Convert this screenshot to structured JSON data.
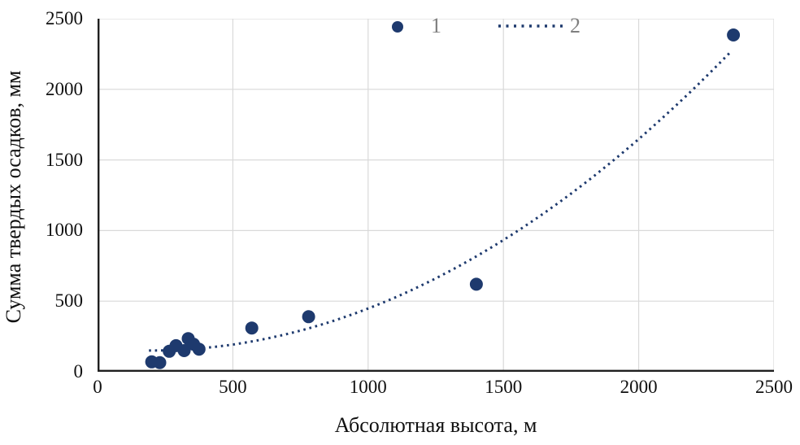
{
  "colors": {
    "series_navy": "#1e3a6e",
    "grid": "#d9d9d9",
    "axis": "#1f1f1f",
    "tick_text": "#111111",
    "legend_text": "#7f7f7f",
    "background": "#ffffff"
  },
  "chart_data": {
    "type": "scatter",
    "title": "",
    "xlabel": "Абсолютная высота, м",
    "ylabel": "Сумма твердых осадков, мм",
    "xlim": [
      0,
      2500
    ],
    "ylim": [
      0,
      2500
    ],
    "x_ticks": [
      0,
      500,
      1000,
      1500,
      2000,
      2500
    ],
    "y_ticks": [
      0,
      500,
      1000,
      1500,
      2000,
      2500
    ],
    "grid": true,
    "legend_position": "top-center-inside",
    "series": [
      {
        "name": "1",
        "type": "scatter",
        "marker": "circle",
        "color": "#1e3a6e",
        "points": [
          [
            200,
            70
          ],
          [
            230,
            65
          ],
          [
            265,
            145
          ],
          [
            290,
            185
          ],
          [
            320,
            150
          ],
          [
            335,
            235
          ],
          [
            355,
            195
          ],
          [
            375,
            160
          ],
          [
            570,
            310
          ],
          [
            780,
            390
          ],
          [
            1400,
            620
          ],
          [
            2350,
            2385
          ]
        ]
      },
      {
        "name": "2",
        "type": "trendline",
        "style": "dotted",
        "color": "#1e3a6e",
        "equation": {
          "form": "quadratic",
          "a": 0.00046,
          "b": -0.18,
          "c": 168
        },
        "x_range": [
          190,
          2335
        ]
      }
    ],
    "legend": [
      {
        "label": "1",
        "marker": "filled-circle"
      },
      {
        "label": "2",
        "marker": "dotted-line"
      }
    ]
  }
}
